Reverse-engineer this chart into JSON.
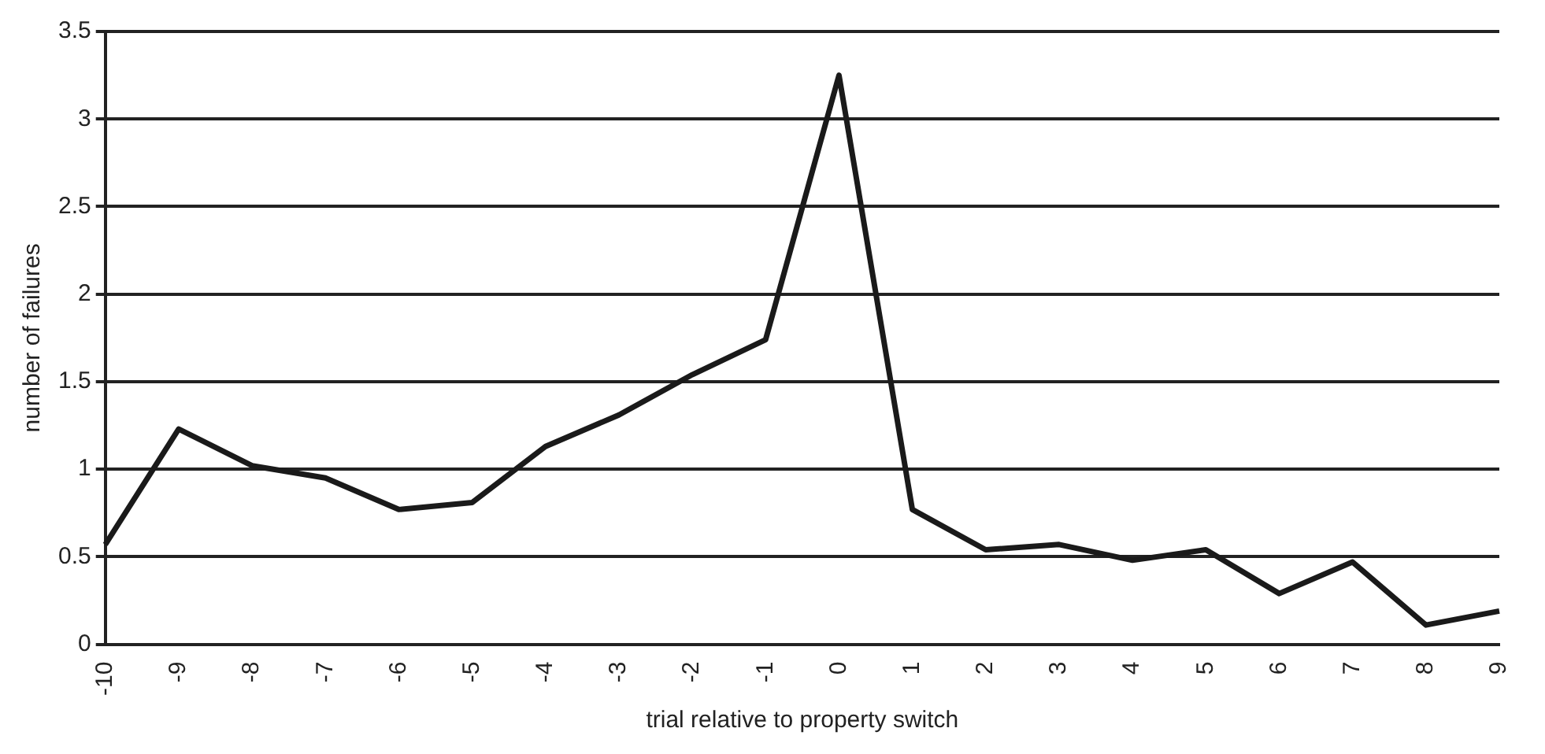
{
  "chart_data": {
    "type": "line",
    "xlabel": "trial relative to property switch",
    "ylabel": "number of failures",
    "categories": [
      "-10",
      "-9",
      "-8",
      "-7",
      "-6",
      "-5",
      "-4",
      "-3",
      "-2",
      "-1",
      "0",
      "1",
      "2",
      "3",
      "4",
      "5",
      "6",
      "7",
      "8",
      "9"
    ],
    "series": [
      {
        "color": "#1a1a1a",
        "values": [
          0.57,
          1.23,
          1.02,
          0.95,
          0.77,
          0.81,
          1.13,
          1.31,
          1.54,
          1.74,
          3.25,
          0.77,
          0.54,
          0.57,
          0.48,
          0.54,
          0.29,
          0.47,
          0.11,
          0.19
        ]
      }
    ],
    "ylim": [
      0,
      3.5
    ],
    "yticks": [
      0,
      0.5,
      1,
      1.5,
      2,
      2.5,
      3,
      3.5
    ],
    "grid": "y",
    "legend": false,
    "marker": "none",
    "line_style": "solid"
  }
}
